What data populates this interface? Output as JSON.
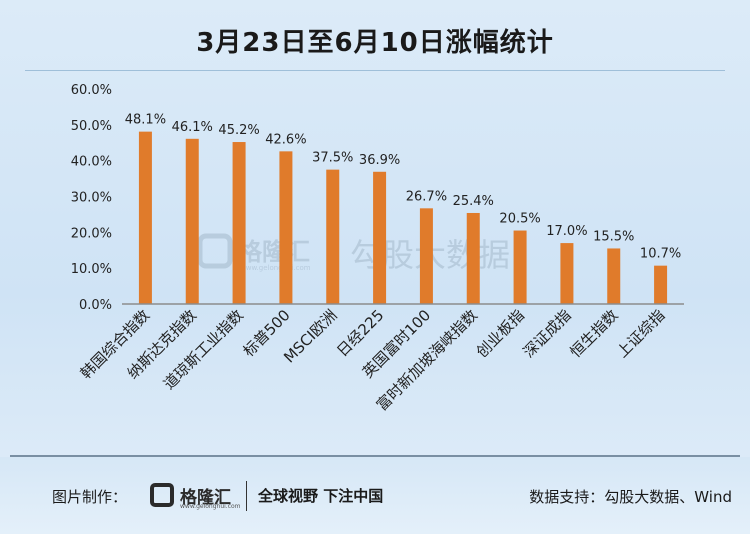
{
  "title": "3月23日至6月10日涨幅统计",
  "chart_data": {
    "type": "bar",
    "title": "3月23日至6月10日涨幅统计",
    "categories": [
      "韩国综合指数",
      "纳斯达克指数",
      "道琼斯工业指数",
      "标普500",
      "MSCI欧洲",
      "日经225",
      "英国富时100",
      "富时新加坡海峡指数",
      "创业板指",
      "深证成指",
      "恒生指数",
      "上证综指"
    ],
    "values": [
      48.1,
      46.1,
      45.2,
      42.6,
      37.5,
      36.9,
      26.7,
      25.4,
      20.5,
      17.0,
      15.5,
      10.7
    ],
    "value_labels": [
      "48.1%",
      "46.1%",
      "45.2%",
      "42.6%",
      "37.5%",
      "36.9%",
      "26.7%",
      "25.4%",
      "20.5%",
      "17.0%",
      "15.5%",
      "10.7%"
    ],
    "y_ticks": [
      "0.0%",
      "10.0%",
      "20.0%",
      "30.0%",
      "40.0%",
      "50.0%",
      "60.0%"
    ],
    "ylim": [
      0,
      60
    ],
    "grid": false,
    "bar_color": "#e07b2b",
    "xlabel": "",
    "ylabel": ""
  },
  "watermark": {
    "logo_text": "格隆汇",
    "logo_url": "www.gelonghui.com",
    "brand_text": "勾股大数据"
  },
  "footer": {
    "made_by_label": "图片制作：",
    "logo_text": "格隆汇",
    "logo_url": "www.gelonghui.com",
    "slogan": "全球视野 下注中国",
    "source": "数据支持：勾股大数据、Wind"
  },
  "colors": {
    "bar": "#e07b2b",
    "background": "#d6e7f6",
    "axis": "#7f7f7f"
  }
}
